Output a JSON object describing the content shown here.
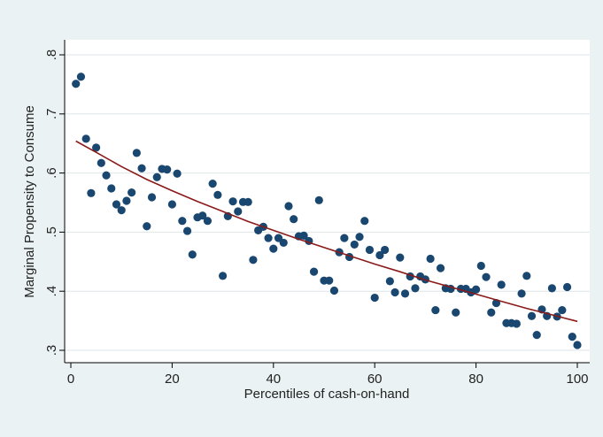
{
  "chart_data": {
    "type": "scatter",
    "title": "",
    "xlabel": "Percentiles of cash-on-hand",
    "ylabel": "Marginal Propensity to Consume",
    "xlim": [
      0,
      100
    ],
    "ylim": [
      0.3,
      0.8
    ],
    "x_ticks": [
      0,
      20,
      40,
      60,
      80,
      100
    ],
    "x_tick_labels": [
      "0",
      "20",
      "40",
      "60",
      "80",
      "100"
    ],
    "y_ticks": [
      0.3,
      0.4,
      0.5,
      0.6,
      0.7,
      0.8
    ],
    "y_tick_labels": [
      ".3",
      ".4",
      ".5",
      ".6",
      ".7",
      ".8"
    ],
    "grid": true,
    "colors": {
      "background": "#eaf2f3",
      "plot_area": "#ffffff",
      "grid": "#dde6e8",
      "points": "#1a476f",
      "fit_line": "#8b1a1a"
    },
    "series": [
      {
        "type": "scatter",
        "x": [
          1,
          2,
          3,
          4,
          5,
          6,
          7,
          8,
          9,
          10,
          11,
          12,
          13,
          14,
          15,
          16,
          17,
          18,
          19,
          20,
          21,
          22,
          23,
          24,
          25,
          26,
          27,
          28,
          29,
          30,
          31,
          32,
          33,
          34,
          35,
          36,
          37,
          38,
          39,
          40,
          41,
          42,
          43,
          44,
          45,
          46,
          47,
          48,
          49,
          50,
          51,
          52,
          53,
          54,
          55,
          56,
          57,
          58,
          59,
          60,
          61,
          62,
          63,
          64,
          65,
          66,
          67,
          68,
          69,
          70,
          71,
          72,
          73,
          74,
          75,
          76,
          77,
          78,
          79,
          80,
          81,
          82,
          83,
          84,
          85,
          86,
          87,
          88,
          89,
          90,
          91,
          92,
          93,
          94,
          95,
          96,
          97,
          98,
          99,
          100
        ],
        "y": [
          0.751,
          0.763,
          0.658,
          0.566,
          0.643,
          0.617,
          0.596,
          0.574,
          0.547,
          0.537,
          0.553,
          0.567,
          0.634,
          0.608,
          0.51,
          0.559,
          0.593,
          0.607,
          0.606,
          0.547,
          0.599,
          0.519,
          0.502,
          0.462,
          0.525,
          0.528,
          0.519,
          0.582,
          0.563,
          0.426,
          0.527,
          0.552,
          0.535,
          0.551,
          0.551,
          0.453,
          0.503,
          0.509,
          0.49,
          0.472,
          0.49,
          0.482,
          0.544,
          0.522,
          0.493,
          0.494,
          0.485,
          0.433,
          0.554,
          0.418,
          0.418,
          0.401,
          0.466,
          0.49,
          0.458,
          0.479,
          0.492,
          0.519,
          0.47,
          0.389,
          0.461,
          0.47,
          0.417,
          0.398,
          0.457,
          0.396,
          0.425,
          0.405,
          0.425,
          0.42,
          0.455,
          0.368,
          0.439,
          0.405,
          0.404,
          0.364,
          0.404,
          0.404,
          0.398,
          0.403,
          0.443,
          0.424,
          0.364,
          0.38,
          0.411,
          0.346,
          0.346,
          0.345,
          0.396,
          0.426,
          0.358,
          0.326,
          0.369,
          0.358,
          0.405,
          0.357,
          0.368,
          0.407,
          0.323,
          0.309
        ]
      },
      {
        "type": "line",
        "x": [
          1,
          5,
          10,
          15,
          20,
          25,
          30,
          35,
          40,
          45,
          50,
          55,
          60,
          65,
          70,
          75,
          80,
          85,
          90,
          95,
          100
        ],
        "y": [
          0.654,
          0.635,
          0.611,
          0.589,
          0.57,
          0.552,
          0.535,
          0.518,
          0.503,
          0.488,
          0.474,
          0.46,
          0.446,
          0.433,
          0.419,
          0.407,
          0.395,
          0.383,
          0.371,
          0.36,
          0.349
        ]
      }
    ]
  }
}
